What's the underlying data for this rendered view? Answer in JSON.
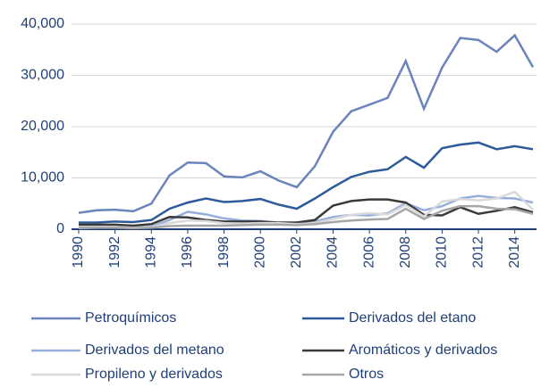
{
  "chart_data": {
    "type": "line",
    "x": [
      1990,
      1991,
      1992,
      1993,
      1994,
      1995,
      1996,
      1997,
      1998,
      1999,
      2000,
      2001,
      2002,
      2003,
      2004,
      2005,
      2006,
      2007,
      2008,
      2009,
      2010,
      2011,
      2012,
      2013,
      2014,
      2015
    ],
    "xlim": [
      1990,
      2015
    ],
    "xticks": [
      1990,
      1992,
      1994,
      1996,
      1998,
      2000,
      2002,
      2004,
      2006,
      2008,
      2010,
      2012,
      2014
    ],
    "ylim": [
      0,
      40000
    ],
    "yticks": [
      {
        "value": 0,
        "label": "0"
      },
      {
        "value": 10000,
        "label": "10,000"
      },
      {
        "value": 20000,
        "label": "20,000"
      },
      {
        "value": 30000,
        "label": "30,000"
      },
      {
        "value": 40000,
        "label": "40,000"
      }
    ],
    "grid": true,
    "series": [
      {
        "name": "Petroquímicos",
        "color": "#6b84bc",
        "values": [
          3200,
          3700,
          3800,
          3500,
          5000,
          10500,
          13000,
          12900,
          10300,
          10100,
          11300,
          9500,
          8200,
          12300,
          19000,
          23000,
          24300,
          25600,
          32800,
          23500,
          31500,
          37300,
          36900,
          34600,
          37800,
          31600
        ]
      },
      {
        "name": "Derivados del etano",
        "color": "#2d5b9a",
        "values": [
          1300,
          1300,
          1500,
          1400,
          1800,
          4000,
          5200,
          6000,
          5300,
          5500,
          5900,
          4800,
          4000,
          6000,
          8200,
          10200,
          11200,
          11700,
          14100,
          12000,
          15800,
          16500,
          16900,
          15600,
          16200,
          15600
        ]
      },
      {
        "name": "Derivados del metano",
        "color": "#95aedb",
        "values": [
          200,
          300,
          300,
          300,
          500,
          1800,
          3400,
          2900,
          2100,
          1700,
          1600,
          1200,
          1100,
          1500,
          2400,
          2800,
          2700,
          3100,
          5100,
          3700,
          4500,
          6000,
          6500,
          6100,
          6000,
          5200
        ]
      },
      {
        "name": "Aromáticos y derivados",
        "color": "#3a3a3a",
        "values": [
          900,
          900,
          900,
          700,
          1000,
          2400,
          2300,
          1800,
          1500,
          1500,
          1500,
          1300,
          1300,
          1800,
          4600,
          5500,
          5800,
          5800,
          5200,
          2800,
          2700,
          4300,
          3000,
          3600,
          4300,
          3300
        ]
      },
      {
        "name": "Propileno y derivados",
        "color": "#d9d9d9",
        "values": [
          400,
          400,
          400,
          300,
          400,
          1200,
          1700,
          1600,
          1200,
          1100,
          1200,
          1200,
          1000,
          1200,
          2000,
          2800,
          3100,
          2900,
          4700,
          2500,
          5400,
          5900,
          5600,
          6000,
          7300,
          3800
        ]
      },
      {
        "name": "Otros",
        "color": "#a6a6a6",
        "values": [
          300,
          300,
          300,
          200,
          300,
          600,
          700,
          700,
          700,
          800,
          900,
          900,
          800,
          1000,
          1400,
          1700,
          1900,
          2000,
          4000,
          2000,
          3600,
          4500,
          4500,
          4000,
          3900,
          3000
        ]
      }
    ]
  }
}
